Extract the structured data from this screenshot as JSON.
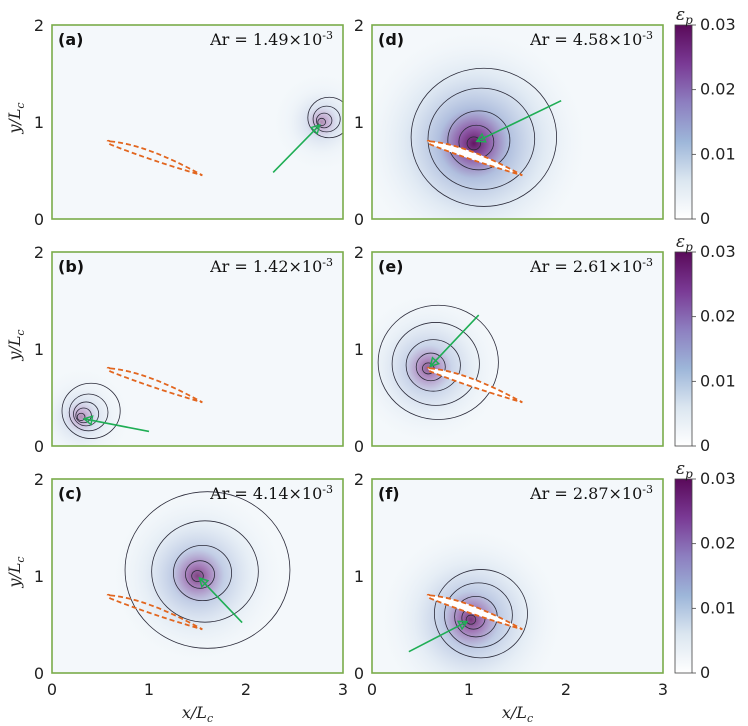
{
  "chart_data": {
    "type": "heatmap",
    "colorbar": {
      "label_main": "ε",
      "label_sub": "p",
      "range": [
        0,
        0.03
      ],
      "ticks": [
        "0",
        "0.01",
        "0.02",
        "0.03"
      ],
      "colormap": [
        "#ffffff",
        "#dbe6f0",
        "#9db6d9",
        "#8d7fc0",
        "#7a3a95",
        "#5a0a5a"
      ]
    },
    "xlabel_main": "x/L",
    "xlabel_sub": "c",
    "ylabel_main": "y/L",
    "ylabel_sub": "c",
    "xlim": [
      0,
      3
    ],
    "ylim": [
      0,
      2
    ],
    "xticks": [
      "0",
      "1",
      "2",
      "3"
    ],
    "yticks": [
      "0",
      "1",
      "2"
    ],
    "frame_color": "#7aac4a",
    "airfoil_color": "#e2661f",
    "arrow_color": "#1fae55",
    "panels": [
      {
        "label": "(a)",
        "ar_prefix": "Ar = 1.49×10",
        "ar_exp": "-3",
        "vortex": [
          2.78,
          1.0
        ],
        "strength": 0.12,
        "airfoil": [
          [
            0.6,
            0.8
          ],
          [
            1.55,
            0.45
          ]
        ],
        "arrow": [
          [
            2.28,
            0.48
          ],
          [
            2.76,
            0.97
          ]
        ],
        "contour_radii": [
          0.04,
          0.08,
          0.14,
          0.22
        ]
      },
      {
        "label": "(b)",
        "ar_prefix": "Ar = 1.42×10",
        "ar_exp": "-3",
        "vortex": [
          0.3,
          0.3
        ],
        "strength": 0.12,
        "airfoil": [
          [
            0.6,
            0.8
          ],
          [
            1.55,
            0.45
          ]
        ],
        "arrow": [
          [
            1.0,
            0.15
          ],
          [
            0.33,
            0.28
          ]
        ],
        "contour_radii": [
          0.04,
          0.08,
          0.13,
          0.2,
          0.3
        ]
      },
      {
        "label": "(c)",
        "ar_prefix": "Ar = 4.14×10",
        "ar_exp": "-3",
        "vortex": [
          1.5,
          1.0
        ],
        "strength": 0.45,
        "airfoil": [
          [
            0.6,
            0.8
          ],
          [
            1.55,
            0.45
          ]
        ],
        "arrow": [
          [
            1.96,
            0.52
          ],
          [
            1.52,
            0.98
          ]
        ],
        "contour_radii": [
          0.06,
          0.15,
          0.3,
          0.55,
          0.85
        ]
      },
      {
        "label": "(d)",
        "ar_prefix": "Ar = 4.58×10",
        "ar_exp": "-3",
        "vortex": [
          1.05,
          0.78
        ],
        "strength": 0.7,
        "airfoil": [
          [
            0.6,
            0.8
          ],
          [
            1.55,
            0.45
          ]
        ],
        "arrow": [
          [
            1.95,
            1.22
          ],
          [
            1.08,
            0.8
          ]
        ],
        "contour_radii": [
          0.07,
          0.18,
          0.32,
          0.55,
          0.75
        ]
      },
      {
        "label": "(e)",
        "ar_prefix": "Ar = 2.61×10",
        "ar_exp": "-3",
        "vortex": [
          0.58,
          0.8
        ],
        "strength": 0.35,
        "airfoil": [
          [
            0.6,
            0.8
          ],
          [
            1.55,
            0.45
          ]
        ],
        "arrow": [
          [
            1.1,
            1.35
          ],
          [
            0.6,
            0.82
          ]
        ],
        "contour_radii": [
          0.06,
          0.15,
          0.28,
          0.45,
          0.62
        ]
      },
      {
        "label": "(f)",
        "ar_prefix": "Ar = 2.87×10",
        "ar_exp": "-3",
        "vortex": [
          1.02,
          0.55
        ],
        "strength": 0.5,
        "airfoil": [
          [
            0.6,
            0.8
          ],
          [
            1.55,
            0.45
          ]
        ],
        "arrow": [
          [
            0.38,
            0.22
          ],
          [
            0.98,
            0.53
          ]
        ],
        "contour_radii": [
          0.05,
          0.12,
          0.22,
          0.35,
          0.48
        ]
      }
    ]
  }
}
